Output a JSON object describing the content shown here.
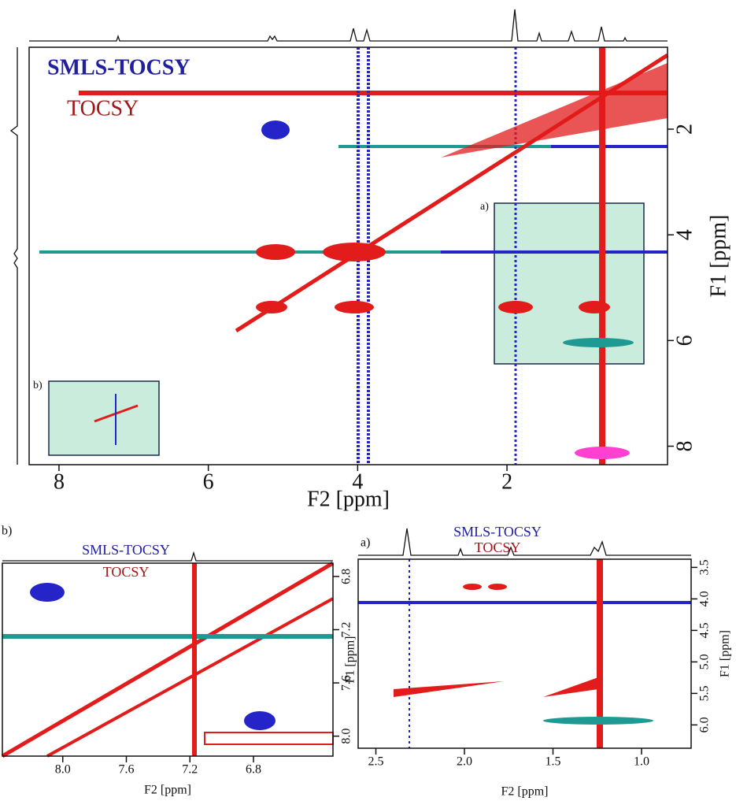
{
  "main": {
    "legend": [
      "SMLS-TOCSY",
      "TOCSY"
    ],
    "x_label": "F2 [ppm]",
    "y_label": "F1 [ppm]",
    "xlim": [
      8.4,
      -0.15
    ],
    "xticks": [
      8,
      6,
      4,
      2
    ],
    "ylim": [
      0.45,
      8.35
    ],
    "yticks": [
      2,
      4,
      6,
      8
    ],
    "insets": [
      "a)",
      "b)"
    ]
  },
  "panel_b": {
    "tag": "b)",
    "legend": [
      "SMLS-TOCSY",
      "TOCSY"
    ],
    "x_label": "F2 [ppm]",
    "y_label": "F1 [ppm]",
    "xlim": [
      8.38,
      6.3
    ],
    "xticks": [
      {
        "value": 8,
        "label": "8.0"
      },
      7.6,
      7.2,
      6.8
    ],
    "ylim": [
      6.7,
      8.15
    ],
    "yticks": [
      6.8,
      7.2,
      7.6,
      {
        "value": 8,
        "label": "8.0"
      }
    ]
  },
  "panel_a": {
    "tag": "a)",
    "legend": [
      "SMLS-TOCSY",
      "TOCSY"
    ],
    "x_label": "F2 [ppm]",
    "y_label": "F1 [ppm]",
    "xlim": [
      2.6,
      0.72
    ],
    "xticks": [
      2.5,
      {
        "value": 2,
        "label": "2.0"
      },
      1.5,
      {
        "value": 1,
        "label": "1.0"
      }
    ],
    "ylim": [
      3.37,
      6.37
    ],
    "yticks": [
      3.5,
      {
        "value": 4,
        "label": "4.0"
      },
      4.5,
      {
        "value": 5,
        "label": "5.0"
      },
      5.5,
      {
        "value": 6,
        "label": "6.0"
      }
    ]
  }
}
